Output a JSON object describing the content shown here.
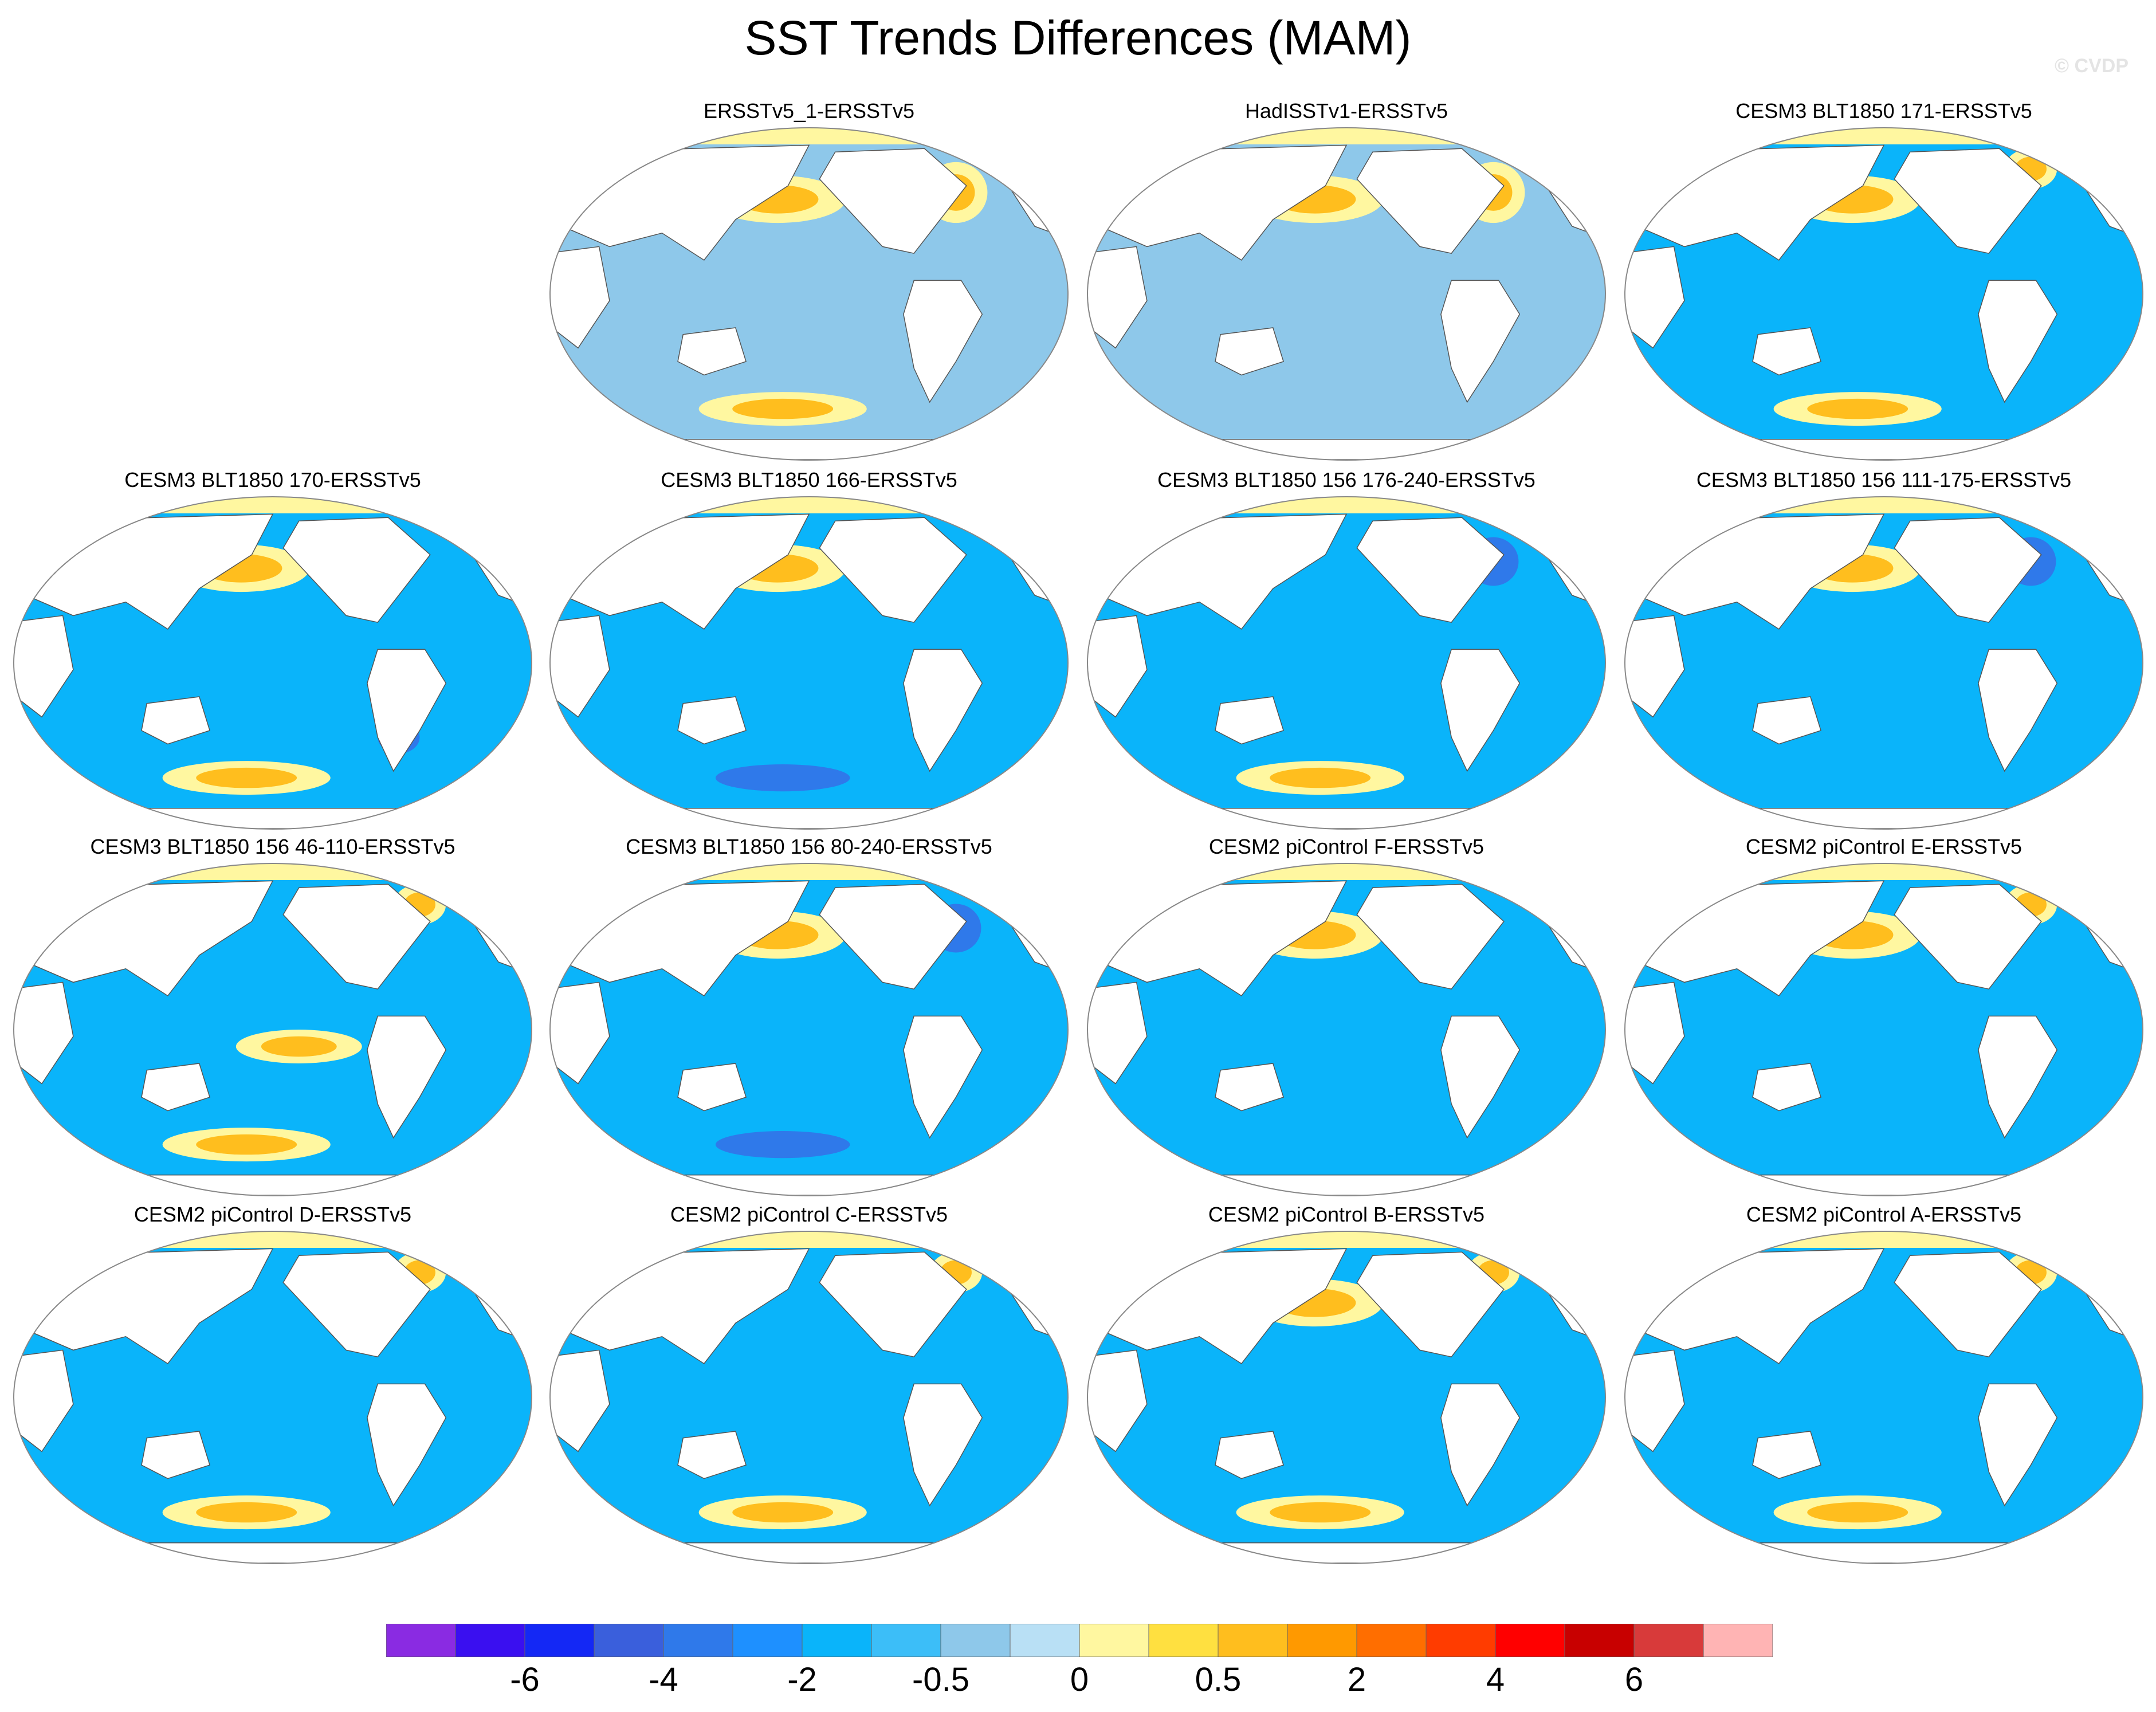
{
  "title": "SST Trends Differences (MAM)",
  "credit": "© CVDP",
  "chart_data": {
    "type": "heatmap",
    "title": "SST Trends Differences (MAM)",
    "projection": "Robinson global map, Pacific-centered",
    "panels": [
      {
        "label": "ERSSTv5_1-ERSSTv5",
        "dominant": "light-blue",
        "warm_areas": [
          "North Pacific",
          "North Atlantic",
          "Southern Ocean"
        ],
        "cool_areas": []
      },
      {
        "label": "HadISSTv1-ERSSTv5",
        "dominant": "light-blue",
        "warm_areas": [
          "North Pacific",
          "North Atlantic"
        ],
        "cool_areas": []
      },
      {
        "label": "CESM3 BLT1850 171-ERSSTv5",
        "dominant": "blue",
        "warm_areas": [
          "North Pacific",
          "Labrador Sea",
          "Southern Ocean"
        ],
        "cool_areas": []
      },
      {
        "label": "CESM3 BLT1850 170-ERSSTv5",
        "dominant": "blue",
        "warm_areas": [
          "North Pacific",
          "Southern Ocean"
        ],
        "cool_areas": [
          "South Atlantic"
        ]
      },
      {
        "label": "CESM3 BLT1850 166-ERSSTv5",
        "dominant": "blue",
        "warm_areas": [
          "North Pacific"
        ],
        "cool_areas": [
          "Southern Ocean"
        ]
      },
      {
        "label": "CESM3 BLT1850 156 176-240-ERSSTv5",
        "dominant": "blue",
        "warm_areas": [
          "Southern Ocean"
        ],
        "cool_areas": [
          "North Atlantic"
        ]
      },
      {
        "label": "CESM3 BLT1850 156 111-175-ERSSTv5",
        "dominant": "blue",
        "warm_areas": [
          "North Pacific"
        ],
        "cool_areas": [
          "North Atlantic"
        ]
      },
      {
        "label": "CESM3 BLT1850 156 46-110-ERSSTv5",
        "dominant": "blue",
        "warm_areas": [
          "Labrador Sea",
          "Equatorial Pacific",
          "Southern Ocean"
        ],
        "cool_areas": []
      },
      {
        "label": "CESM3 BLT1850 156 80-240-ERSSTv5",
        "dominant": "blue",
        "warm_areas": [
          "North Pacific"
        ],
        "cool_areas": [
          "North Atlantic",
          "Southern Ocean"
        ]
      },
      {
        "label": "CESM2 piControl F-ERSSTv5",
        "dominant": "blue",
        "warm_areas": [
          "North Pacific"
        ],
        "cool_areas": []
      },
      {
        "label": "CESM2 piControl E-ERSSTv5",
        "dominant": "blue",
        "warm_areas": [
          "Labrador Sea",
          "North Pacific"
        ],
        "cool_areas": []
      },
      {
        "label": "CESM2 piControl D-ERSSTv5",
        "dominant": "blue",
        "warm_areas": [
          "Labrador Sea",
          "Southern Ocean"
        ],
        "cool_areas": []
      },
      {
        "label": "CESM2 piControl C-ERSSTv5",
        "dominant": "blue",
        "warm_areas": [
          "Labrador Sea",
          "Southern Ocean"
        ],
        "cool_areas": []
      },
      {
        "label": "CESM2 piControl B-ERSSTv5",
        "dominant": "blue",
        "warm_areas": [
          "Labrador Sea",
          "North Pacific",
          "Southern Ocean"
        ],
        "cool_areas": []
      },
      {
        "label": "CESM2 piControl A-ERSSTv5",
        "dominant": "blue",
        "warm_areas": [
          "Labrador Sea",
          "Southern Ocean"
        ],
        "cool_areas": []
      }
    ],
    "colorbar": {
      "colors": [
        "#8a2be2",
        "#3a0ff0",
        "#1428f5",
        "#3a5fdc",
        "#2f79ea",
        "#1e90ff",
        "#0ab4fa",
        "#3cbef8",
        "#8ec8ea",
        "#b9e0f5",
        "#fff7a0",
        "#ffe040",
        "#ffbe1e",
        "#ff9900",
        "#ff6e00",
        "#ff3c00",
        "#ff0000",
        "#c80000",
        "#d83a3a",
        "#ffb4b4"
      ],
      "tick_labels": [
        "-6",
        "-4",
        "-2",
        "-0.5",
        "0",
        "0.5",
        "2",
        "4",
        "6"
      ],
      "tick_after_box": [
        2,
        4,
        6,
        8,
        10,
        12,
        14,
        16,
        18
      ]
    }
  }
}
